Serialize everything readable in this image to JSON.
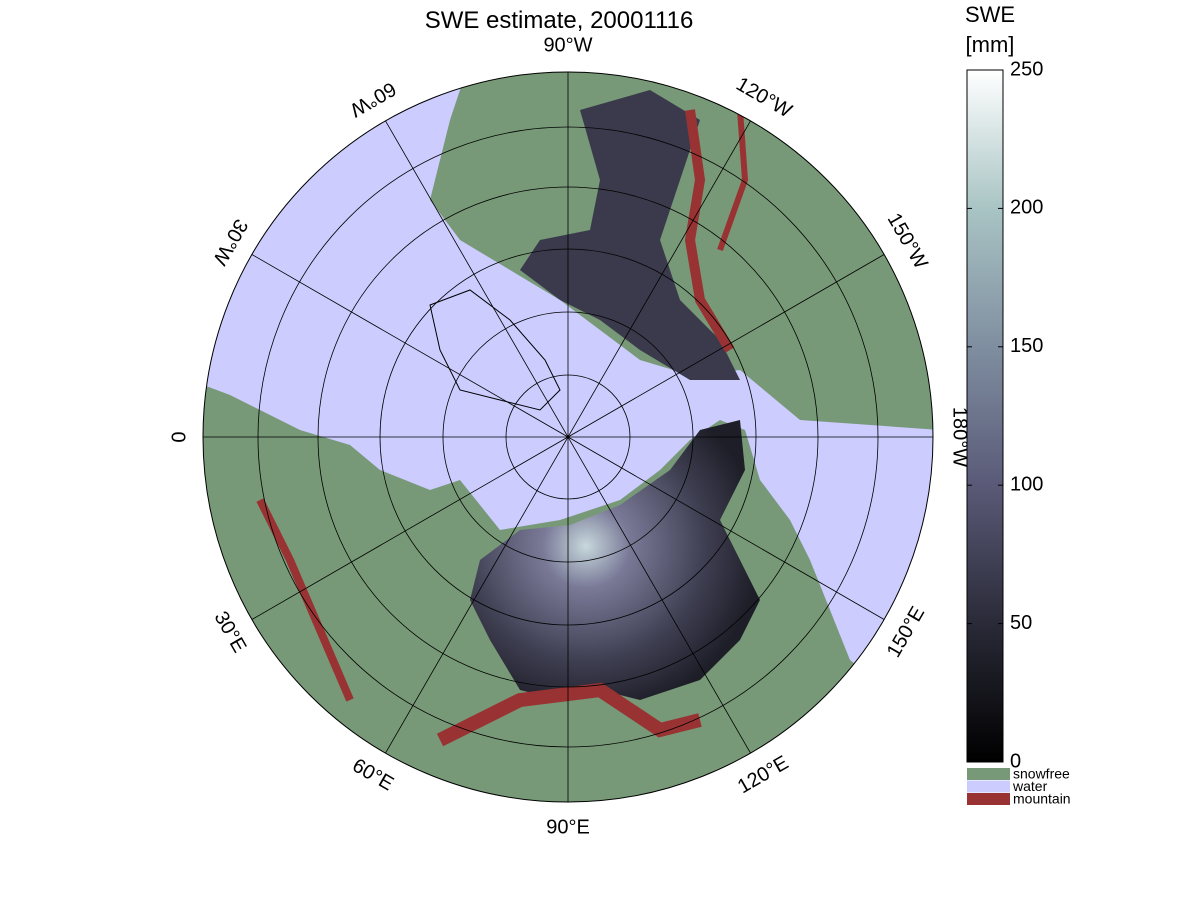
{
  "title": "SWE estimate, 20001116",
  "longitude_labels": [
    "90°W",
    "120°W",
    "150°W",
    "180°W",
    "150°E",
    "120°E",
    "90°E",
    "60°E",
    "30°E",
    "0",
    "30°W",
    "60°W"
  ],
  "colorbar": {
    "label": [
      "SWE",
      "[mm]"
    ],
    "lim": [
      0,
      250
    ],
    "ticks": [
      0,
      50,
      100,
      150,
      200,
      250
    ]
  },
  "legend": [
    {
      "label": "snowfree",
      "color": "#779977"
    },
    {
      "label": "water",
      "color": "#ccccff"
    },
    {
      "label": "mountain",
      "color": "#993333"
    }
  ]
}
